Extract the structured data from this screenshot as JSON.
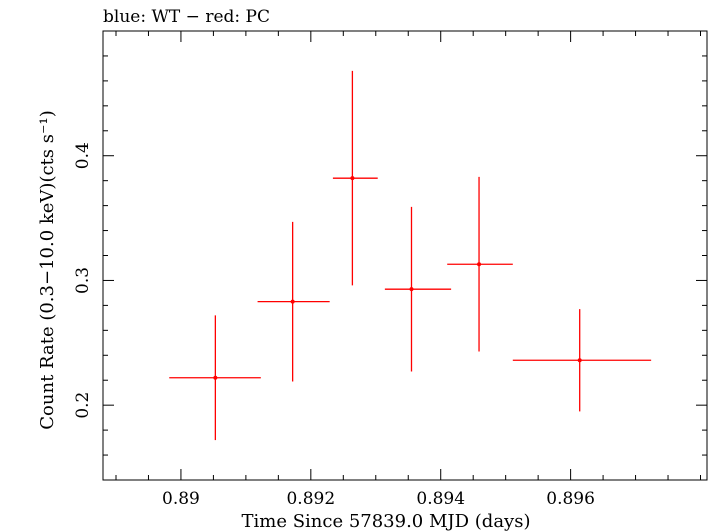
{
  "chart_data": {
    "type": "scatter",
    "title": "blue: WT − red: PC",
    "xlabel": "Time Since 57839.0 MJD (days)",
    "ylabel": "Count Rate (0.3−10.0 keV)(cts s⁻¹)",
    "xlim": [
      0.8888,
      0.8981
    ],
    "ylim": [
      0.14,
      0.5
    ],
    "x_ticks": [
      0.89,
      0.892,
      0.894,
      0.896
    ],
    "x_tick_labels": [
      "0.89",
      "0.892",
      "0.894",
      "0.896"
    ],
    "y_ticks": [
      0.2,
      0.3,
      0.4
    ],
    "y_tick_labels": [
      "0.2",
      "0.3",
      "0.4"
    ],
    "grid": false,
    "series": [
      {
        "name": "PC",
        "color": "#ff0000",
        "points": [
          {
            "x": 0.89053,
            "y": 0.222,
            "xlo": 0.88982,
            "xhi": 0.89123,
            "ylo": 0.172,
            "yhi": 0.272
          },
          {
            "x": 0.89172,
            "y": 0.283,
            "xlo": 0.89118,
            "xhi": 0.89229,
            "ylo": 0.219,
            "yhi": 0.347
          },
          {
            "x": 0.89264,
            "y": 0.382,
            "xlo": 0.89234,
            "xhi": 0.89303,
            "ylo": 0.296,
            "yhi": 0.468
          },
          {
            "x": 0.89355,
            "y": 0.293,
            "xlo": 0.89314,
            "xhi": 0.89416,
            "ylo": 0.227,
            "yhi": 0.359
          },
          {
            "x": 0.89459,
            "y": 0.313,
            "xlo": 0.8941,
            "xhi": 0.89511,
            "ylo": 0.243,
            "yhi": 0.383
          },
          {
            "x": 0.89614,
            "y": 0.236,
            "xlo": 0.89511,
            "xhi": 0.89724,
            "ylo": 0.195,
            "yhi": 0.277
          }
        ]
      }
    ]
  }
}
